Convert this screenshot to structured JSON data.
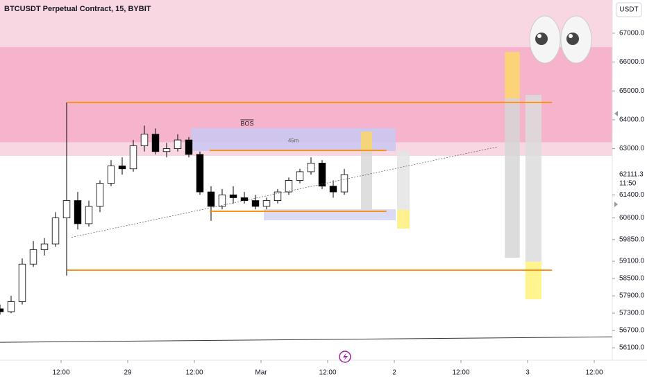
{
  "chart_data": {
    "type": "candlestick",
    "title": "BTCUSDT Perpetual Contract, 15, BYBIT",
    "currency": "USDT",
    "xlim": [
      1,
      111.25
    ],
    "xticks": [
      {
        "value": 12,
        "label": "12:00"
      },
      {
        "value": 24,
        "label": "29"
      },
      {
        "value": 36,
        "label": "12:00"
      },
      {
        "value": 48,
        "label": "Mar"
      },
      {
        "value": 60,
        "label": "12:00"
      },
      {
        "value": 72,
        "label": "2"
      },
      {
        "value": 84,
        "label": "12:00"
      },
      {
        "value": 96,
        "label": "3"
      },
      {
        "value": 108,
        "label": "12:00"
      }
    ],
    "ylim": [
      55670,
      68150
    ],
    "yticks": [
      {
        "value": 67000,
        "label": "67000.0"
      },
      {
        "value": 66000,
        "label": "66000.0"
      },
      {
        "value": 65000,
        "label": "65000.0"
      },
      {
        "value": 64000,
        "label": "64000.0"
      },
      {
        "value": 63000,
        "label": "63000.0"
      },
      {
        "value": 61400,
        "label": "61400.0"
      },
      {
        "value": 60600,
        "label": "60600.0"
      },
      {
        "value": 59850,
        "label": "59850.0"
      },
      {
        "value": 59100,
        "label": "59100.0"
      },
      {
        "value": 58500,
        "label": "58500.0"
      },
      {
        "value": 57900,
        "label": "57900.0"
      },
      {
        "value": 57300,
        "label": "57300.0"
      },
      {
        "value": 56700,
        "label": "56700.0"
      },
      {
        "value": 56100,
        "label": "56100.0"
      }
    ],
    "last_price": 62111.3,
    "countdown": "11:50",
    "candles": {
      "up_color": "#000000",
      "down_color": "#000000",
      "x": [
        1,
        3,
        5,
        7,
        9,
        11,
        13,
        15,
        17,
        19,
        21,
        23,
        25,
        27,
        29,
        31,
        33,
        35,
        37,
        39,
        41,
        43,
        45,
        47,
        49,
        51,
        53,
        55,
        57,
        59,
        61,
        63
      ],
      "open": [
        57450,
        57350,
        57700,
        59000,
        59500,
        59700,
        60600,
        61200,
        60400,
        61000,
        61800,
        62400,
        62300,
        63100,
        63500,
        62900,
        63000,
        63300,
        62800,
        61500,
        61000,
        61400,
        61300,
        61200,
        61000,
        61200,
        61500,
        61900,
        62200,
        62500,
        61700,
        61500
      ],
      "high": [
        57600,
        57900,
        59200,
        59800,
        59900,
        60800,
        64600,
        61500,
        61200,
        61900,
        62600,
        62700,
        63300,
        63800,
        63700,
        63200,
        63500,
        63400,
        62900,
        61700,
        61600,
        61700,
        61500,
        61400,
        61300,
        61600,
        62000,
        62300,
        62700,
        62600,
        61900,
        62300
      ],
      "low": [
        57250,
        57300,
        57600,
        58900,
        59300,
        59600,
        58600,
        60200,
        60300,
        60800,
        61700,
        62100,
        62200,
        62900,
        62800,
        62700,
        62900,
        62700,
        61400,
        60500,
        60900,
        61100,
        61100,
        60900,
        60900,
        61100,
        61400,
        61800,
        62100,
        61600,
        61300,
        61400
      ],
      "close": [
        57350,
        57700,
        59000,
        59500,
        59700,
        60600,
        61200,
        60400,
        61000,
        61800,
        62400,
        62300,
        63100,
        63500,
        62900,
        63000,
        63300,
        62800,
        61500,
        61000,
        61400,
        61300,
        61200,
        61000,
        61200,
        61500,
        61900,
        62200,
        62500,
        61700,
        61500,
        62100
      ]
    },
    "zones": [
      {
        "y0": 62750,
        "y1": 68150,
        "color": "#f8d7e3"
      },
      {
        "y0": 63220,
        "y1": 66520,
        "color": "#f6b3cc"
      }
    ],
    "boxes": [
      {
        "x0": 35.4,
        "x1": 72.25,
        "y0": 62920,
        "y1": 63710,
        "color": "#c9c8f2",
        "label": "45m"
      },
      {
        "x0": 48.5,
        "x1": 72.25,
        "y0": 60520,
        "y1": 60900,
        "color": "#d3d3f2"
      },
      {
        "x0": 66,
        "x1": 68,
        "y0": 62920,
        "y1": 63590,
        "color": "#fbd66a"
      },
      {
        "x0": 66,
        "x1": 68,
        "y0": 60900,
        "y1": 62920,
        "color": "#d8d8d8"
      },
      {
        "x0": 72.5,
        "x1": 74.75,
        "y0": 60880,
        "y1": 62940,
        "color": "#e4e4e4"
      },
      {
        "x0": 72.5,
        "x1": 74.75,
        "y0": 60230,
        "y1": 60880,
        "color": "#fff07a"
      },
      {
        "x0": 91.9,
        "x1": 94.6,
        "y0": 64740,
        "y1": 66350,
        "color": "#fdd868"
      },
      {
        "x0": 91.9,
        "x1": 94.6,
        "y0": 59220,
        "y1": 64740,
        "color": "#d6d6d6"
      },
      {
        "x0": 95.6,
        "x1": 98.5,
        "y0": 59080,
        "y1": 64860,
        "color": "#dcdcdc"
      },
      {
        "x0": 95.6,
        "x1": 98.5,
        "y0": 57780,
        "y1": 59080,
        "color": "#fff27a"
      }
    ],
    "lines": [
      {
        "x0": 13.1,
        "x1": 100.4,
        "y0": 64600,
        "y1": 64600,
        "color": "#f7931a",
        "width": 2
      },
      {
        "x0": 13.1,
        "x1": 100.4,
        "y0": 58790,
        "y1": 58790,
        "color": "#f7931a",
        "width": 2
      },
      {
        "x0": 38.75,
        "x1": 70.6,
        "y0": 62940,
        "y1": 62940,
        "color": "#f7931a",
        "width": 2
      },
      {
        "x0": 38.75,
        "x1": 70.6,
        "y0": 60830,
        "y1": 60830,
        "color": "#f7931a",
        "width": 2
      },
      {
        "x0": 13.9,
        "x1": 90.5,
        "y0": 59930,
        "y1": 63060,
        "color": "#555555",
        "width": 0.7,
        "dashed": true
      },
      {
        "x0": 1,
        "x1": 111.25,
        "y0": 56290,
        "y1": 56480,
        "color": "#333333",
        "width": 1
      }
    ],
    "annotations": [
      {
        "text": "BOS",
        "x": 45.5,
        "y": 63850
      }
    ]
  }
}
